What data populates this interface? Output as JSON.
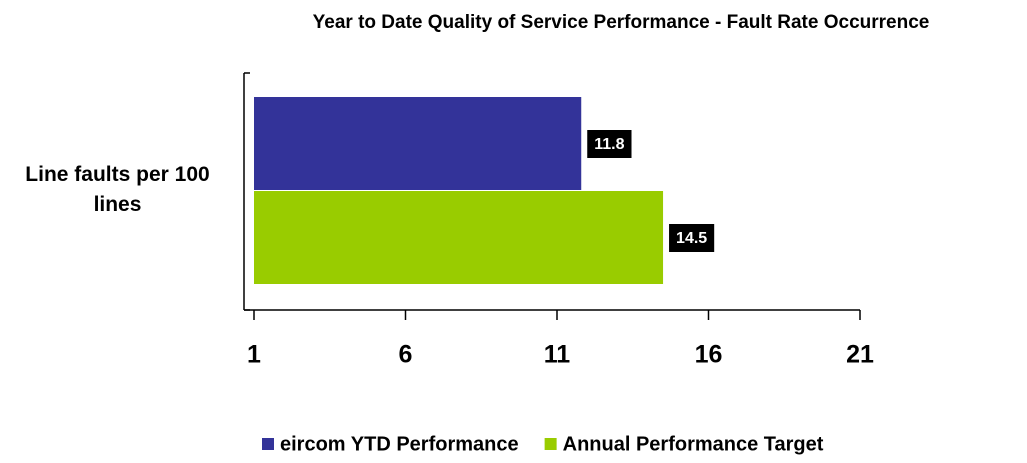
{
  "chart_data": {
    "type": "barh",
    "title": "Year to Date Quality of Service Performance - Fault Rate Occurrence",
    "categories": [
      "Line faults per 100 lines"
    ],
    "series": [
      {
        "name": "eircom YTD Performance",
        "color": "#333399",
        "values": [
          11.8
        ]
      },
      {
        "name": "Annual Performance Target",
        "color": "#99cc00",
        "values": [
          14.5
        ]
      }
    ],
    "xlim": [
      1,
      21
    ],
    "xticks": [
      1,
      6,
      11,
      16,
      21
    ],
    "legend": "bottom"
  }
}
